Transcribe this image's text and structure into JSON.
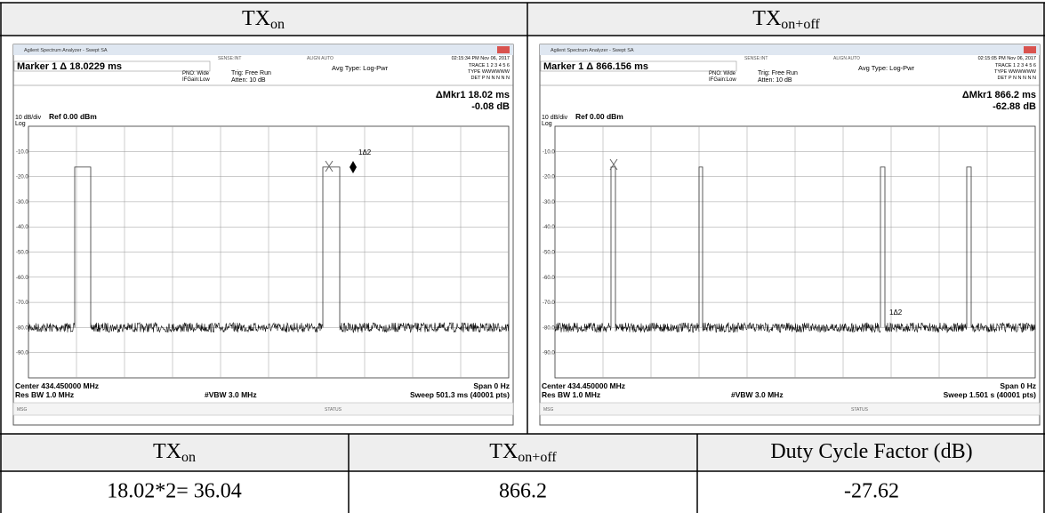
{
  "header": {
    "cells": [
      {
        "main": "TX",
        "sub": "on"
      },
      {
        "main": "TX",
        "sub": "on+off"
      }
    ]
  },
  "analyzers": [
    {
      "app_title": "Agilent Spectrum Analyzer - Swept SA",
      "marker": "Marker 1 Δ 18.0229 ms",
      "pno": "PNO: Wide",
      "ifgain": "IFGain:Low",
      "trig": "Trig: Free Run",
      "atten": "Atten: 10 dB",
      "avg_type": "Avg Type: Log-Pwr",
      "sense": "SENSE:INT",
      "align": "ALIGN AUTO",
      "timestamp": "02:15:34 PM Nov 06, 2017",
      "trace": "TRACE 1 2 3 4 5 6",
      "trace_type": "TYPE WWWWWW",
      "det": "DET P N N N N N",
      "delta_marker": "ΔMkr1 18.02 ms",
      "delta_value": "-0.08 dB",
      "scale": "10 dB/div",
      "ref": "Ref 0.00 dBm",
      "log": "Log",
      "y_labels": [
        "-10.0",
        "-20.0",
        "-30.0",
        "-40.0",
        "-50.0",
        "-60.0",
        "-70.0",
        "-80.0",
        "-90.0"
      ],
      "marker_label": "1Δ2",
      "center": "Center 434.450000 MHz",
      "res_bw": "Res BW 1.0 MHz",
      "vbw": "#VBW 3.0 MHz",
      "span": "Span 0 Hz",
      "sweep": "Sweep 501.3 ms (40001 pts)",
      "msg": "MSG",
      "status": "STATUS"
    },
    {
      "app_title": "Agilent Spectrum Analyzer - Swept SA",
      "marker": "Marker 1 Δ 866.156 ms",
      "pno": "PNO: Wide",
      "ifgain": "IFGain:Low",
      "trig": "Trig: Free Run",
      "atten": "Atten: 10 dB",
      "avg_type": "Avg Type: Log-Pwr",
      "sense": "SENSE:INT",
      "align": "ALIGN AUTO",
      "timestamp": "02:15:05 PM Nov 06, 2017",
      "trace": "TRACE 1 2 3 4 5 6",
      "trace_type": "TYPE WWWWWW",
      "det": "DET P N N N N N",
      "delta_marker": "ΔMkr1 866.2 ms",
      "delta_value": "-62.88 dB",
      "scale": "10 dB/div",
      "ref": "Ref 0.00 dBm",
      "log": "Log",
      "y_labels": [
        "-10.0",
        "-20.0",
        "-30.0",
        "-40.0",
        "-50.0",
        "-60.0",
        "-70.0",
        "-80.0",
        "-90.0"
      ],
      "marker_label": "1Δ2",
      "center": "Center 434.450000 MHz",
      "res_bw": "Res BW 1.0 MHz",
      "vbw": "#VBW 3.0 MHz",
      "span": "Span 0 Hz",
      "sweep": "Sweep 1.501 s (40001 pts)",
      "msg": "MSG",
      "status": "STATUS"
    }
  ],
  "results": {
    "headers": [
      {
        "main": "TX",
        "sub": "on"
      },
      {
        "main": "TX",
        "sub": "on+off"
      },
      {
        "main": "Duty Cycle Factor (dB)"
      }
    ],
    "values": [
      "18.02*2= 36.04",
      866.2,
      -27.62
    ]
  }
}
